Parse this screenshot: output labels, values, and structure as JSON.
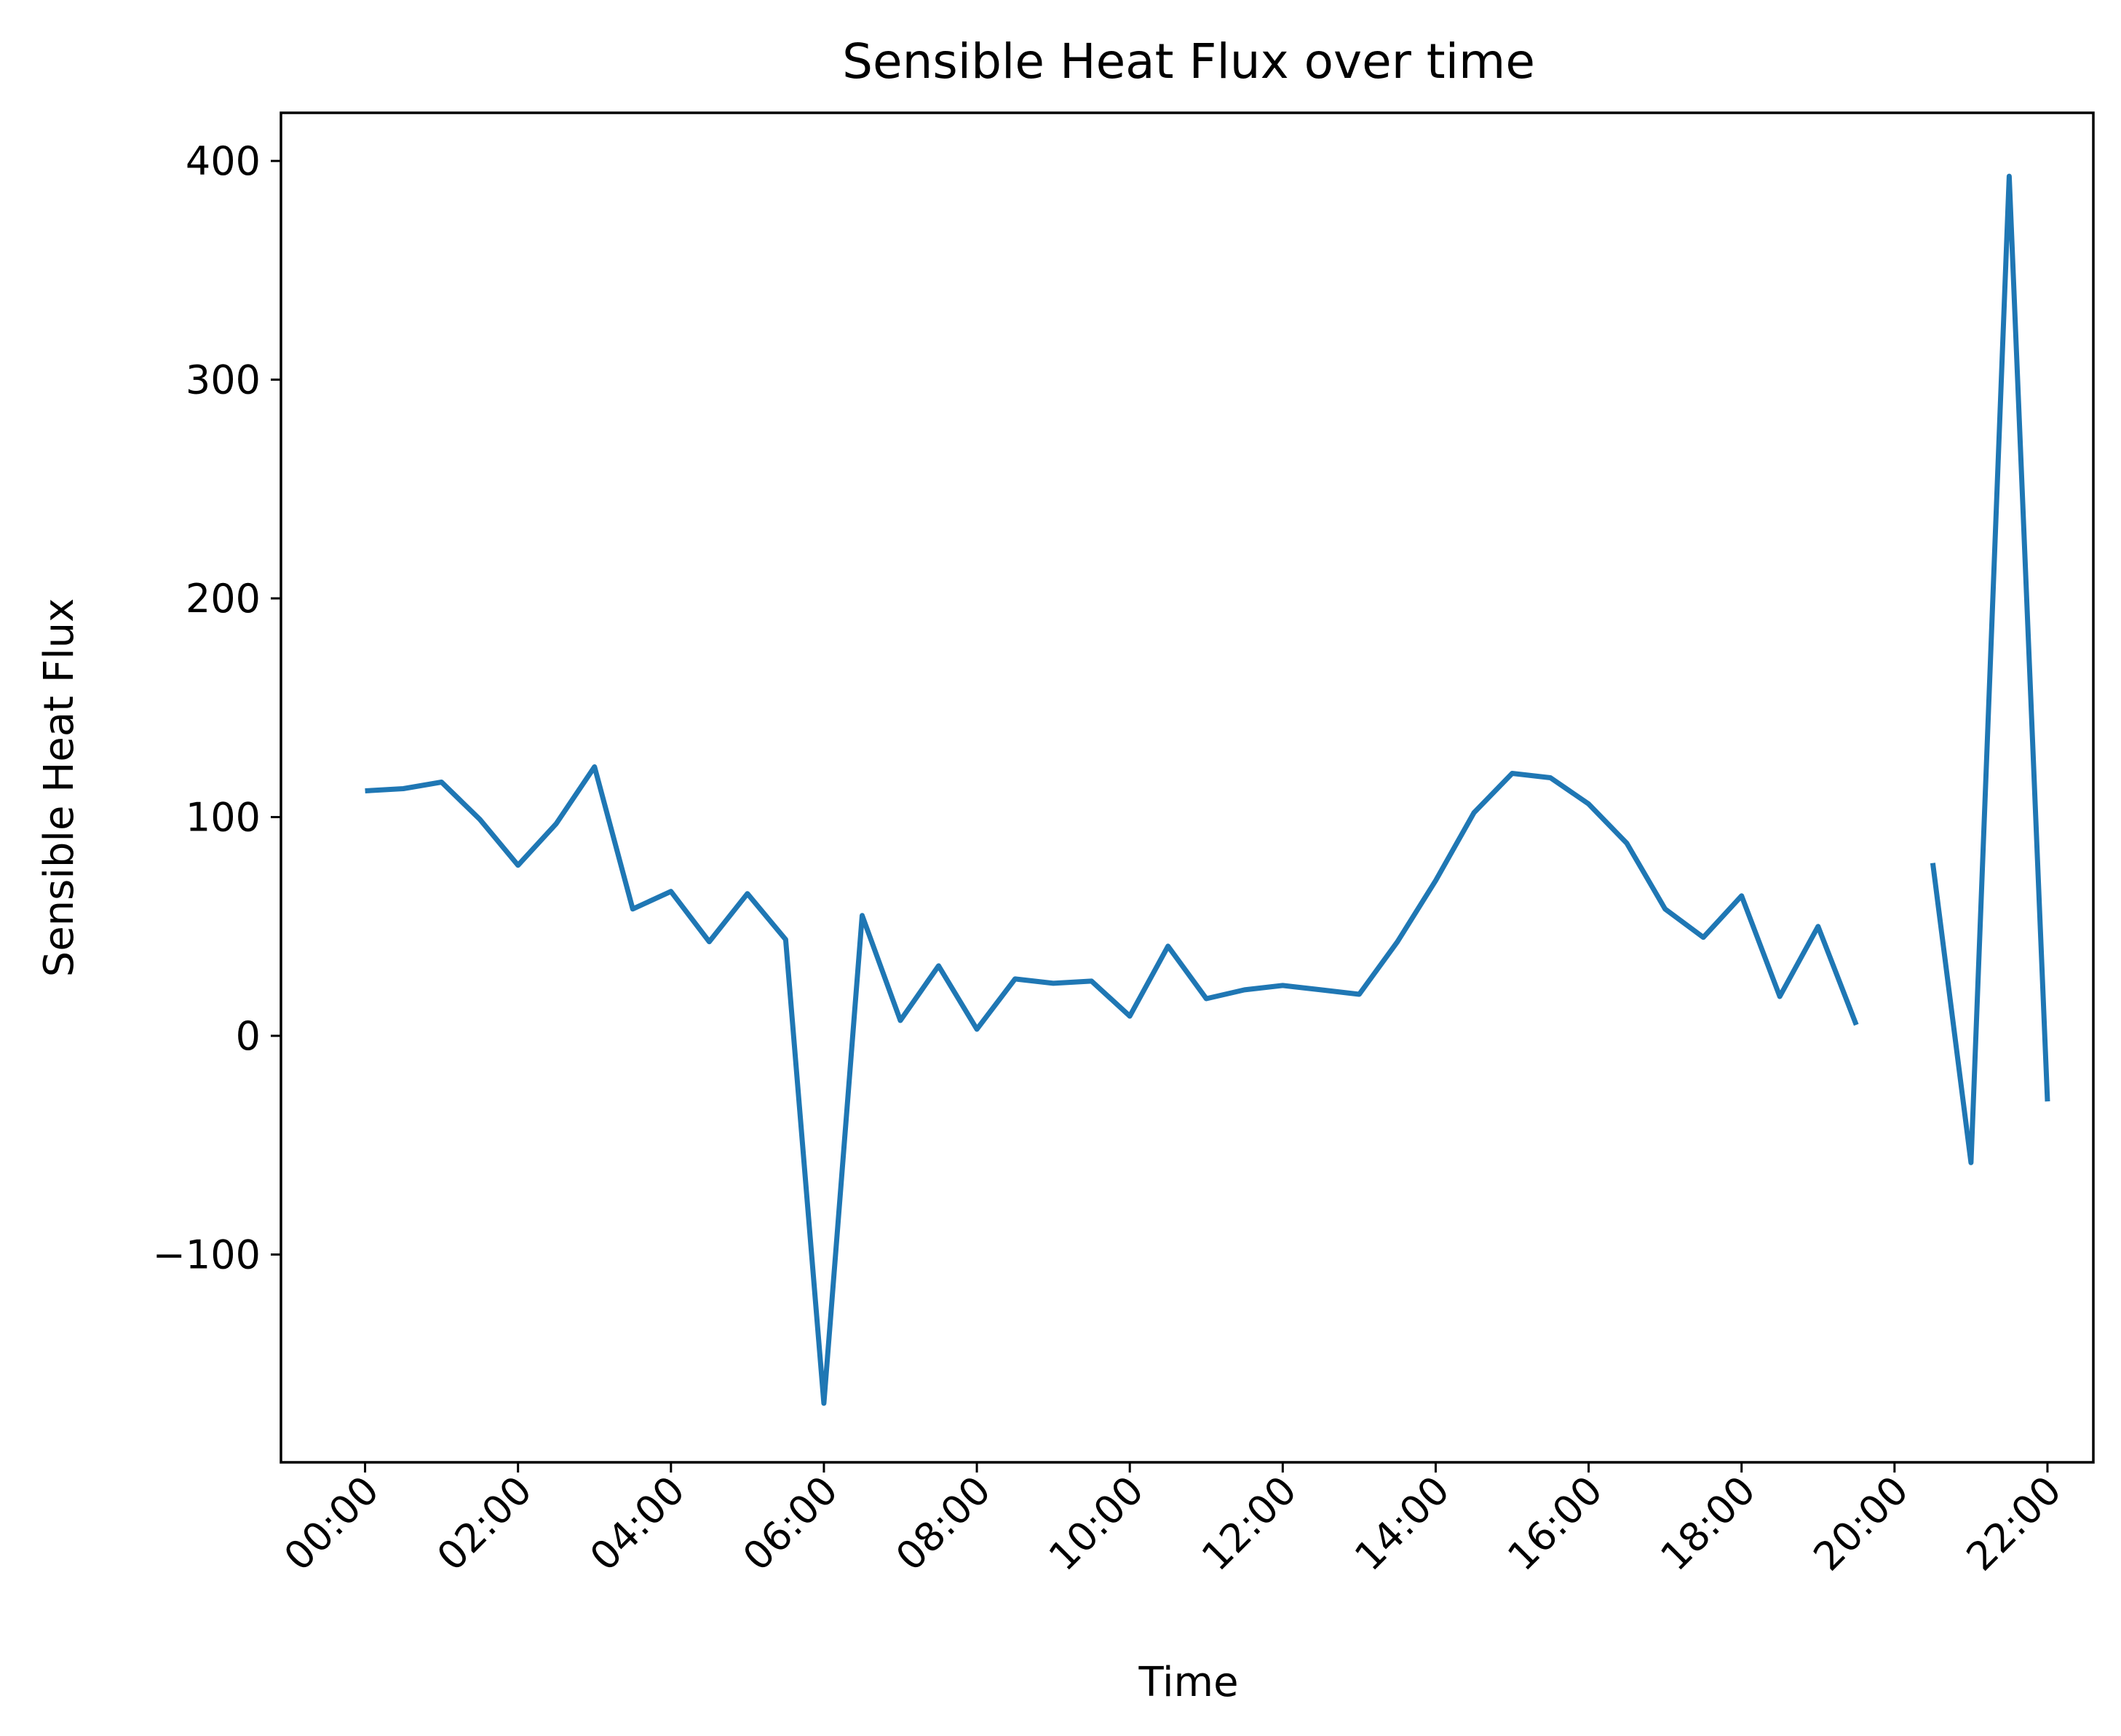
{
  "chart_data": {
    "type": "line",
    "title": "Sensible Heat Flux over time",
    "xlabel": "Time",
    "ylabel": "Sensible Heat Flux",
    "x_ticks": [
      "00:00",
      "02:00",
      "04:00",
      "06:00",
      "08:00",
      "10:00",
      "12:00",
      "14:00",
      "16:00",
      "18:00",
      "20:00",
      "22:00"
    ],
    "x_tick_hours": [
      0,
      2,
      4,
      6,
      8,
      10,
      12,
      14,
      16,
      18,
      20,
      22
    ],
    "y_ticks": [
      -100,
      0,
      100,
      200,
      300,
      400
    ],
    "y_tick_labels": [
      "−100",
      "0",
      "100",
      "200",
      "300",
      "400"
    ],
    "xlim": [
      "-01:06",
      "22:36"
    ],
    "ylim": [
      -195,
      422
    ],
    "grid": false,
    "series": [
      {
        "color": "#1f77b4",
        "x": [
          "00:00",
          "00:30",
          "01:00",
          "01:30",
          "02:00",
          "02:30",
          "03:00",
          "03:30",
          "04:00",
          "04:30",
          "05:00",
          "05:30",
          "06:00",
          "06:30",
          "07:00",
          "07:30",
          "08:00",
          "08:30",
          "09:00",
          "09:30",
          "10:00",
          "10:30",
          "11:00",
          "11:30",
          "12:00",
          "12:30",
          "13:00",
          "13:30",
          "14:00",
          "14:30",
          "15:00",
          "15:30",
          "16:00",
          "16:30",
          "17:00",
          "17:30",
          "18:00",
          "18:30",
          "19:00",
          "19:30",
          "20:00",
          "20:30",
          "21:00",
          "21:30",
          "22:00"
        ],
        "values": [
          112,
          113,
          116,
          99,
          78,
          97,
          123,
          58,
          66,
          43,
          65,
          44,
          -168,
          55,
          7,
          32,
          3,
          26,
          24,
          25,
          9,
          41,
          17,
          21,
          23,
          21,
          19,
          43,
          71,
          102,
          120,
          118,
          106,
          88,
          58,
          45,
          64,
          18,
          50,
          5,
          null,
          79,
          -58,
          393,
          -30
        ]
      }
    ]
  }
}
